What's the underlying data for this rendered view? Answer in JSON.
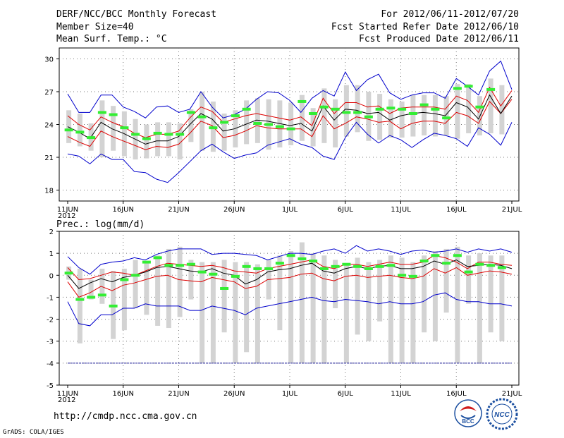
{
  "header": {
    "title": "DERF/NCC/BCC Monthly Forecast",
    "member_size": "Member Size=40",
    "variable": "Mean Surf. Temp.: °C",
    "period": "For 2012/06/11-2012/07/20",
    "started": "Fcst Started Refer Date 2012/06/10",
    "produced": "Fcst Produced Date 2012/06/11"
  },
  "footer": {
    "url": "http://cmdp.ncc.cma.gov.cn",
    "grads": "GrADS: COLA/IGES",
    "logo_bcc": "BCC",
    "logo_ncc": "NCC"
  },
  "colors": {
    "spread": "#0000cc",
    "quartile": "#dd0000",
    "mean": "#000000",
    "obs": "#33ee33",
    "box": "#d3d3d3",
    "grid": "#777777"
  },
  "chart_data": [
    {
      "type": "line",
      "title": "Mean Surf. Temp.: °C",
      "x_labels": [
        "11JUN\n2012",
        "16JUN",
        "21JUN",
        "26JUN",
        "1JUL",
        "6JUL",
        "11JUL",
        "16JUL",
        "21JUL"
      ],
      "x_days": 40,
      "ylim": [
        17,
        31
      ],
      "yticks": [
        18,
        21,
        24,
        27,
        30
      ],
      "series": [
        {
          "name": "max",
          "values": [
            21.3,
            21.1,
            20.4,
            21.3,
            20.8,
            20.8,
            19.7,
            19.6,
            19.0,
            18.7,
            19.6,
            20.6,
            21.6,
            22.2,
            21.5,
            20.9,
            21.2,
            21.4,
            22.1,
            22.4,
            22.7,
            22.2,
            21.9,
            21.1,
            20.8,
            22.8,
            24.2,
            23.1,
            22.3,
            23.0,
            22.6,
            21.9,
            22.6,
            23.2,
            23.0,
            22.7,
            22.0,
            23.7,
            23.1,
            22.1,
            24.2
          ]
        },
        {
          "name": "q_low",
          "values": [
            22.9,
            22.4,
            22.0,
            23.4,
            22.9,
            22.5,
            22.1,
            21.7,
            22.0,
            21.9,
            22.2,
            23.2,
            24.3,
            23.9,
            22.8,
            23.0,
            23.4,
            23.9,
            23.7,
            23.6,
            23.6,
            23.6,
            22.9,
            24.8,
            23.6,
            24.1,
            24.7,
            24.5,
            24.2,
            24.3,
            23.6,
            24.1,
            24.3,
            24.3,
            24.1,
            25.1,
            24.8,
            24.1,
            26.1,
            25.0,
            26.3
          ]
        },
        {
          "name": "mean",
          "values": [
            23.8,
            23.3,
            22.7,
            24.2,
            23.6,
            23.2,
            22.7,
            22.2,
            22.5,
            22.5,
            22.9,
            24.0,
            25.0,
            24.5,
            23.4,
            23.6,
            24.0,
            24.4,
            24.3,
            24.1,
            23.9,
            24.1,
            23.4,
            25.7,
            24.4,
            25.4,
            25.3,
            25.0,
            25.1,
            24.4,
            24.8,
            25.0,
            25.1,
            25.0,
            24.8,
            26.0,
            25.6,
            24.5,
            26.7,
            25.0,
            26.6
          ]
        },
        {
          "name": "q_high",
          "values": [
            24.8,
            24.0,
            23.5,
            24.7,
            24.2,
            23.8,
            23.2,
            22.8,
            23.1,
            23.1,
            23.4,
            24.6,
            25.6,
            25.2,
            24.2,
            24.5,
            24.8,
            25.0,
            24.8,
            24.6,
            24.4,
            24.7,
            23.9,
            26.4,
            25.0,
            26.0,
            26.0,
            25.6,
            25.7,
            25.0,
            25.5,
            25.6,
            25.6,
            25.6,
            25.4,
            26.6,
            26.2,
            25.1,
            27.4,
            25.7,
            27.1
          ]
        },
        {
          "name": "min",
          "values": [
            26.8,
            25.1,
            25.1,
            26.7,
            26.7,
            25.6,
            25.2,
            24.6,
            25.6,
            25.7,
            25.1,
            25.4,
            27.0,
            25.6,
            24.6,
            24.9,
            25.4,
            26.3,
            27.0,
            26.9,
            26.2,
            25.1,
            26.4,
            27.1,
            26.6,
            28.8,
            27.1,
            28.1,
            28.6,
            26.9,
            26.3,
            26.7,
            26.9,
            26.9,
            26.4,
            28.2,
            27.5,
            26.7,
            28.9,
            29.8,
            27.2
          ]
        },
        {
          "name": "obs",
          "values": [
            23.5,
            23.3,
            22.8,
            25.1,
            24.9,
            23.7,
            23.1,
            22.7,
            23.2,
            23.1,
            23.1,
            25.1,
            24.7,
            23.7,
            24.2,
            24.8,
            25.4,
            24.1,
            24.0,
            23.8,
            23.6,
            26.1,
            25.0,
            25.6,
            25.4,
            25.1,
            25.1,
            24.7,
            25.4,
            25.5,
            25.4,
            25.0,
            25.8,
            25.4,
            24.6,
            27.3,
            27.5,
            25.6,
            27.2
          ]
        }
      ],
      "box_low": [
        22.3,
        22.0,
        21.6,
        21.0,
        21.6,
        21.1,
        20.8,
        20.9,
        21.1,
        21.1,
        20.8,
        22.4,
        21.6,
        21.5,
        21.6,
        21.9,
        22.2,
        22.3,
        21.7,
        21.9,
        22.1,
        22.5,
        22.0,
        22.3,
        21.9,
        22.9,
        23.3,
        22.5,
        22.6,
        22.8,
        22.8,
        22.9,
        23.0,
        22.9,
        23.0,
        22.7,
        23.2,
        23.0,
        23.2,
        23.1
      ],
      "box_high": [
        25.3,
        25.0,
        24.1,
        26.2,
        25.7,
        25.2,
        24.5,
        24.0,
        24.2,
        24.2,
        24.1,
        25.4,
        27.0,
        26.1,
        25.0,
        25.3,
        26.2,
        26.4,
        26.3,
        26.2,
        26.0,
        26.7,
        25.5,
        27.3,
        26.3,
        27.6,
        27.6,
        27.0,
        26.8,
        26.3,
        26.1,
        26.7,
        26.7,
        26.7,
        26.6,
        27.7,
        27.7,
        26.6,
        28.2,
        27.6
      ]
    },
    {
      "type": "line",
      "title": "Prec.: log(mm/d)",
      "x_labels": [
        "11JUN\n2012",
        "16JUN",
        "21JUN",
        "26JUN",
        "1JUL",
        "6JUL",
        "11JUL",
        "16JUL",
        "21JUL"
      ],
      "x_days": 40,
      "ylim": [
        -5,
        2
      ],
      "yticks": [
        -5,
        -4,
        -3,
        -2,
        -1,
        0,
        1,
        2
      ],
      "series": [
        {
          "name": "max",
          "values": [
            0.85,
            0.35,
            0.05,
            0.5,
            0.6,
            0.65,
            0.8,
            0.7,
            0.95,
            1.1,
            1.2,
            1.2,
            1.2,
            0.95,
            1.0,
            1.0,
            0.95,
            0.9,
            0.7,
            0.85,
            1.0,
            1.0,
            0.95,
            1.1,
            1.2,
            1.0,
            1.35,
            1.1,
            1.2,
            1.1,
            0.95,
            1.1,
            1.15,
            1.05,
            1.1,
            1.2,
            1.05,
            1.2,
            1.1,
            1.2,
            1.05
          ]
        },
        {
          "name": "q_high",
          "values": [
            0.35,
            -0.2,
            -0.15,
            0.0,
            0.15,
            0.1,
            0.0,
            0.2,
            0.4,
            0.55,
            0.5,
            0.45,
            0.4,
            0.45,
            0.35,
            0.2,
            0.15,
            0.1,
            0.3,
            0.4,
            0.5,
            0.6,
            0.7,
            0.4,
            0.3,
            0.5,
            0.5,
            0.4,
            0.5,
            0.6,
            0.5,
            0.5,
            0.6,
            0.9,
            0.8,
            0.6,
            0.3,
            0.6,
            0.6,
            0.5,
            0.45
          ]
        },
        {
          "name": "mean",
          "values": [
            0.0,
            -0.6,
            -0.35,
            -0.15,
            -0.3,
            -0.1,
            0.0,
            0.15,
            0.35,
            0.4,
            0.3,
            0.2,
            0.15,
            0.3,
            0.1,
            0.0,
            -0.4,
            -0.2,
            0.15,
            0.25,
            0.3,
            0.45,
            0.55,
            0.2,
            0.1,
            0.3,
            0.4,
            0.3,
            0.4,
            0.45,
            0.3,
            0.3,
            0.4,
            0.65,
            0.5,
            0.7,
            0.4,
            0.45,
            0.5,
            0.45,
            0.3
          ]
        },
        {
          "name": "q_low",
          "values": [
            -0.3,
            -1.0,
            -0.8,
            -0.5,
            -0.7,
            -0.45,
            -0.35,
            -0.2,
            -0.05,
            0.0,
            -0.2,
            -0.25,
            -0.3,
            -0.1,
            -0.2,
            -0.3,
            -0.6,
            -0.5,
            -0.2,
            -0.15,
            -0.1,
            0.05,
            0.1,
            -0.15,
            -0.25,
            -0.05,
            0.0,
            -0.1,
            -0.05,
            0.0,
            -0.1,
            -0.15,
            -0.05,
            0.3,
            0.1,
            0.35,
            0.0,
            0.1,
            0.2,
            0.15,
            0.05
          ]
        },
        {
          "name": "min",
          "values": [
            -1.2,
            -2.2,
            -2.3,
            -1.8,
            -1.8,
            -1.5,
            -1.5,
            -1.3,
            -1.4,
            -1.4,
            -1.4,
            -1.6,
            -1.6,
            -1.4,
            -1.5,
            -1.6,
            -1.8,
            -1.5,
            -1.4,
            -1.3,
            -1.2,
            -1.1,
            -1.0,
            -1.15,
            -1.2,
            -1.1,
            -1.15,
            -1.2,
            -1.3,
            -1.2,
            -1.3,
            -1.3,
            -1.2,
            -0.9,
            -0.8,
            -1.1,
            -1.2,
            -1.2,
            -1.3,
            -1.3,
            -1.4
          ]
        },
        {
          "name": "obs",
          "values": [
            0.1,
            -1.1,
            -1.0,
            -0.9,
            -1.4,
            -0.2,
            0.0,
            0.6,
            0.8,
            0.45,
            0.45,
            0.5,
            0.15,
            0.05,
            -0.6,
            -0.05,
            0.4,
            0.3,
            0.3,
            0.55,
            0.9,
            0.75,
            0.65,
            0.3,
            0.4,
            0.5,
            0.4,
            0.3,
            0.4,
            0.45,
            0.0,
            -0.05,
            0.65,
            0.9,
            0.55,
            0.9,
            0.15,
            0.5,
            0.45,
            0.35
          ]
        },
        {
          "name": "floor",
          "values": [
            -4.0,
            -4.0
          ]
        }
      ],
      "box_low": [
        -0.2,
        -3.1,
        -1.1,
        -1.3,
        -2.9,
        -2.5,
        -1.5,
        -1.8,
        -2.3,
        -2.4,
        -1.9,
        -1.1,
        -4.0,
        -4.0,
        -2.6,
        -4.0,
        -3.5,
        -4.0,
        -1.1,
        -2.5,
        -4.0,
        -4.0,
        -4.0,
        -4.0,
        -1.5,
        -4.0,
        -2.7,
        -3.0,
        -2.1,
        -4.0,
        -4.0,
        -4.0,
        -2.6,
        -3.0,
        -1.7,
        -4.0,
        -1.3,
        -4.0,
        -2.6,
        -3.0
      ],
      "box_high": [
        0.4,
        0.3,
        -0.2,
        0.3,
        0.2,
        0.3,
        0.7,
        0.6,
        0.9,
        1.2,
        1.3,
        0.7,
        0.6,
        0.6,
        0.7,
        0.6,
        0.6,
        0.5,
        0.7,
        0.9,
        1.1,
        1.5,
        1.0,
        0.9,
        0.7,
        0.5,
        0.8,
        0.6,
        0.7,
        0.9,
        0.8,
        0.6,
        0.9,
        1.1,
        1.2,
        1.3,
        0.9,
        1.0,
        0.9,
        0.9
      ]
    }
  ]
}
